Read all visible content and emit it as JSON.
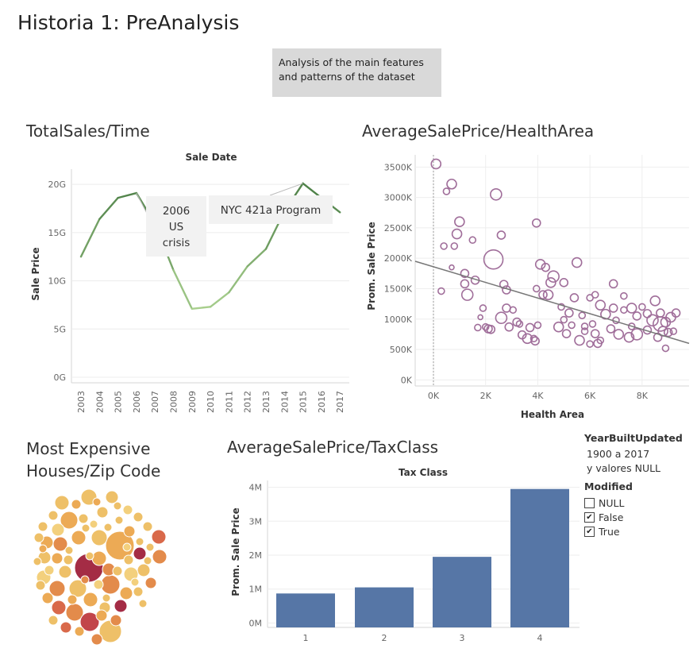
{
  "story_title": "Historia 1: PreAnalysis",
  "description": [
    "Analysis of the main features",
    "and patterns of the dataset"
  ],
  "sheets": {
    "sales_time": "TotalSales/Time",
    "health_area": "AverageSalePrice/HealthArea",
    "zip_code": [
      "Most Expensive",
      "Houses/Zip Code"
    ],
    "tax_class": "AverageSalePrice/TaxClass"
  },
  "legend": {
    "year_title": "YearBuiltUpdated",
    "year_lines": [
      "1900 a 2017",
      "y valores NULL"
    ],
    "modified_title": "Modified",
    "items": [
      {
        "label": "NULL",
        "checked": false
      },
      {
        "label": "False",
        "checked": true
      },
      {
        "label": "True",
        "checked": true
      }
    ]
  },
  "colors": {
    "line_dark": "#4a7d45",
    "line_light": "#a9d08e",
    "scatter": "#a06e9a",
    "bar": "#5676a6",
    "callout_bg": "#f2f2f2"
  },
  "chart_data": [
    {
      "type": "line",
      "title": "Sale Date",
      "ylabel": "Sale Price",
      "x": [
        "2003",
        "2004",
        "2005",
        "2006",
        "2007",
        "2008",
        "2009",
        "2010",
        "2011",
        "2012",
        "2013",
        "2014",
        "2015",
        "2016",
        "2017"
      ],
      "values": [
        12.5,
        16.4,
        18.6,
        19.1,
        15.9,
        11.1,
        7.1,
        7.3,
        8.8,
        11.5,
        13.3,
        17.2,
        20.1,
        18.6,
        17.1
      ],
      "ylim": [
        0,
        21
      ],
      "yticks": [
        "0G",
        "5G",
        "10G",
        "15G",
        "20G"
      ],
      "annotations": [
        "2006\nUS\ncrisis",
        "NYC 421a Program"
      ],
      "grid": true
    },
    {
      "type": "scatter",
      "xlabel": "Health Area",
      "ylabel": "Prom. Sale Price",
      "xticks": [
        "0K",
        "2K",
        "4K",
        "6K",
        "8K"
      ],
      "yticks": [
        "0K",
        "500K",
        "1000K",
        "1500K",
        "2000K",
        "2500K",
        "3000K",
        "3500K"
      ],
      "xlim": [
        -700,
        9800
      ],
      "ylim": [
        -100,
        3700
      ],
      "trend_line": [
        [
          -700,
          1950
        ],
        [
          9800,
          600
        ]
      ],
      "points": [
        [
          100,
          3550,
          6
        ],
        [
          700,
          3220,
          6
        ],
        [
          500,
          3100,
          4
        ],
        [
          2400,
          3050,
          7
        ],
        [
          1000,
          2600,
          6
        ],
        [
          900,
          2400,
          6
        ],
        [
          3950,
          2580,
          5
        ],
        [
          2600,
          2380,
          5
        ],
        [
          1500,
          2300,
          4
        ],
        [
          400,
          2200,
          4
        ],
        [
          2300,
          1980,
          12
        ],
        [
          800,
          2200,
          4
        ],
        [
          700,
          1850,
          3
        ],
        [
          4100,
          1900,
          6
        ],
        [
          4300,
          1850,
          5
        ],
        [
          5500,
          1930,
          6
        ],
        [
          1200,
          1750,
          5
        ],
        [
          1200,
          1580,
          5
        ],
        [
          1600,
          1640,
          5
        ],
        [
          1300,
          1400,
          7
        ],
        [
          2700,
          1570,
          5
        ],
        [
          2800,
          1480,
          5
        ],
        [
          4600,
          1700,
          7
        ],
        [
          4500,
          1600,
          6
        ],
        [
          4400,
          1400,
          6
        ],
        [
          4200,
          1400,
          5
        ],
        [
          3950,
          1500,
          4
        ],
        [
          5000,
          1600,
          5
        ],
        [
          5400,
          1350,
          5
        ],
        [
          6000,
          1350,
          4
        ],
        [
          6900,
          1580,
          5
        ],
        [
          7300,
          1380,
          4
        ],
        [
          6400,
          1230,
          6
        ],
        [
          6600,
          1080,
          6
        ],
        [
          6900,
          1180,
          5
        ],
        [
          7300,
          1150,
          4
        ],
        [
          7600,
          1180,
          6
        ],
        [
          7800,
          1050,
          5
        ],
        [
          8000,
          1200,
          4
        ],
        [
          8200,
          1090,
          5
        ],
        [
          8500,
          1300,
          6
        ],
        [
          8700,
          1100,
          5
        ],
        [
          8900,
          950,
          6
        ],
        [
          9100,
          1030,
          6
        ],
        [
          9300,
          1100,
          5
        ],
        [
          8400,
          980,
          7
        ],
        [
          8700,
          920,
          9
        ],
        [
          8800,
          800,
          6
        ],
        [
          9000,
          780,
          5
        ],
        [
          9200,
          800,
          4
        ],
        [
          8600,
          700,
          5
        ],
        [
          8900,
          520,
          4
        ],
        [
          2800,
          1180,
          5
        ],
        [
          2600,
          1020,
          7
        ],
        [
          2900,
          870,
          5
        ],
        [
          3200,
          950,
          5
        ],
        [
          3400,
          740,
          5
        ],
        [
          3700,
          860,
          5
        ],
        [
          3600,
          680,
          6
        ],
        [
          3900,
          640,
          5
        ],
        [
          1900,
          1180,
          4
        ],
        [
          1700,
          860,
          4
        ],
        [
          2100,
          840,
          5
        ],
        [
          2000,
          870,
          4
        ],
        [
          2200,
          830,
          5
        ],
        [
          1800,
          1030,
          3
        ],
        [
          3050,
          1150,
          4
        ],
        [
          4800,
          870,
          6
        ],
        [
          5000,
          990,
          4
        ],
        [
          5100,
          760,
          5
        ],
        [
          5300,
          900,
          4
        ],
        [
          5600,
          650,
          6
        ],
        [
          5800,
          880,
          4
        ],
        [
          6100,
          920,
          4
        ],
        [
          6200,
          760,
          5
        ],
        [
          6000,
          590,
          4
        ],
        [
          6300,
          600,
          5
        ],
        [
          6400,
          650,
          4
        ],
        [
          6800,
          840,
          5
        ],
        [
          7100,
          750,
          6
        ],
        [
          7500,
          700,
          6
        ],
        [
          7800,
          750,
          7
        ],
        [
          7600,
          880,
          4
        ],
        [
          8200,
          820,
          5
        ],
        [
          4900,
          1200,
          4
        ],
        [
          5200,
          1100,
          5
        ],
        [
          5700,
          1060,
          4
        ],
        [
          5800,
          800,
          4
        ],
        [
          300,
          1460,
          4
        ],
        [
          6200,
          1400,
          4
        ],
        [
          3850,
          680,
          4
        ],
        [
          4000,
          900,
          4
        ],
        [
          3300,
          920,
          4
        ],
        [
          7000,
          980,
          4
        ]
      ]
    },
    {
      "type": "bar",
      "title": "Tax Class",
      "ylabel": "Prom. Sale Price",
      "categories": [
        "1",
        "2",
        "3",
        "4"
      ],
      "values": [
        0.87,
        1.05,
        1.95,
        3.95
      ],
      "ylim": [
        -0.13,
        4.2
      ],
      "yticks": [
        "0M",
        "1M",
        "2M",
        "3M",
        "4M"
      ]
    },
    {
      "type": "bubble",
      "title": "Most Expensive Houses/Zip Code",
      "colors": [
        "#f3d07d",
        "#eec068",
        "#ecaa55",
        "#e38b4b",
        "#d9694a",
        "#c2454a",
        "#a42c45"
      ]
    }
  ]
}
